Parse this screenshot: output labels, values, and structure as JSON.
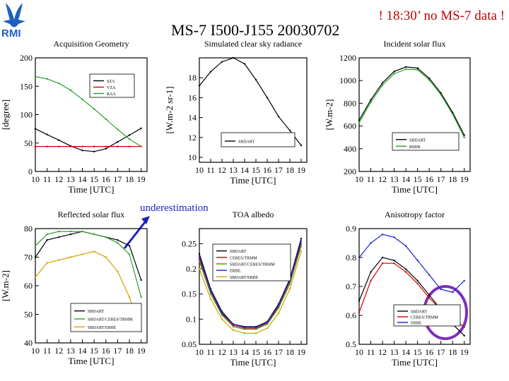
{
  "slide": {
    "title": "MS-7 I500-J155 20030702",
    "warning": "! 18:30’ no MS-7 data !",
    "logo_text": "RMI",
    "annotation": "underestimation",
    "colors": {
      "title": "#000000",
      "warning": "#c00000",
      "annotation": "#1f1fbf",
      "circle": "#7b2fbf",
      "logo": "#1f5fbf"
    }
  },
  "chart_data": [
    {
      "type": "line",
      "title": "Acquisition Geometry",
      "xlabel": "Time [UTC]",
      "ylabel": "[degree]",
      "x": [
        10,
        11,
        12,
        13,
        14,
        15,
        16,
        17,
        18,
        19
      ],
      "xticks": [
        "10",
        "11",
        "12",
        "13",
        "14",
        "15",
        "16",
        "17",
        "18",
        "19"
      ],
      "xlim": [
        10,
        19.5
      ],
      "ylim": [
        0,
        200
      ],
      "yticks": [
        0,
        50,
        100,
        150,
        200
      ],
      "legend": "upper-middle",
      "series": [
        {
          "name": "SZA",
          "color": "#000000",
          "values": [
            75,
            65,
            55,
            45,
            37,
            35,
            40,
            52,
            64,
            76
          ]
        },
        {
          "name": "VZA",
          "color": "#d40000",
          "values": [
            44,
            44,
            44,
            44,
            44,
            44,
            44,
            44,
            44,
            44
          ]
        },
        {
          "name": "RAA",
          "color": "#2ca02c",
          "values": [
            167,
            163,
            155,
            143,
            127,
            110,
            92,
            74,
            57,
            44
          ]
        }
      ]
    },
    {
      "type": "line",
      "title": "Simulated clear sky radiance",
      "xlabel": "Time [UTC]",
      "ylabel": "[W.m-2 sr-1]",
      "x": [
        10,
        11,
        12,
        13,
        14,
        15,
        16,
        17,
        18,
        19
      ],
      "xticks": [
        "10",
        "11",
        "12",
        "13",
        "14",
        "15",
        "16",
        "17",
        "18",
        "19"
      ],
      "xlim": [
        10,
        19.5
      ],
      "ylim": [
        9.5,
        20
      ],
      "yticks": [
        10,
        12,
        14,
        16,
        18
      ],
      "legend": "lower-right",
      "series": [
        {
          "name": "SBDART",
          "color": "#000000",
          "values": [
            17.2,
            18.6,
            19.6,
            20.0,
            19.4,
            17.8,
            16.0,
            14.1,
            12.7,
            11.2
          ]
        }
      ]
    },
    {
      "type": "line",
      "title": "Incident solar flux",
      "xlabel": "Time [UTC]",
      "ylabel": "[W.m-2]",
      "x": [
        10,
        11,
        12,
        13,
        14,
        15,
        16,
        17,
        18,
        19
      ],
      "xticks": [
        "10",
        "11",
        "12",
        "13",
        "14",
        "15",
        "16",
        "17",
        "18",
        "19"
      ],
      "xlim": [
        10,
        19.5
      ],
      "ylim": [
        200,
        1200
      ],
      "yticks": [
        200,
        400,
        600,
        800,
        1000,
        1200
      ],
      "legend": "lower-right",
      "series": [
        {
          "name": "SBDART",
          "color": "#000000",
          "values": [
            650,
            830,
            980,
            1080,
            1120,
            1110,
            1020,
            890,
            720,
            520
          ]
        },
        {
          "name": "RMIB",
          "color": "#2ca02c",
          "values": [
            630,
            810,
            960,
            1060,
            1100,
            1095,
            1005,
            875,
            705,
            500
          ]
        }
      ]
    },
    {
      "type": "line",
      "title": "Reflected solar flux",
      "xlabel": "Time [UTC]",
      "ylabel": "[W.m-2]",
      "x": [
        10,
        11,
        12,
        13,
        14,
        15,
        16,
        17,
        18,
        19
      ],
      "xticks": [
        "10",
        "11",
        "12",
        "13",
        "14",
        "15",
        "16",
        "17",
        "18",
        "19"
      ],
      "xlim": [
        10,
        19.5
      ],
      "ylim": [
        40,
        80
      ],
      "yticks": [
        40,
        50,
        60,
        70,
        80
      ],
      "legend": "lower-left",
      "series": [
        {
          "name": "SBDART",
          "color": "#000000",
          "values": [
            70,
            76,
            77,
            78,
            79,
            78,
            77,
            76,
            74,
            62
          ]
        },
        {
          "name": "SBDART/CERES/TRMM",
          "color": "#2ca02c",
          "values": [
            74,
            78,
            79,
            79,
            79,
            78,
            77,
            75,
            71,
            56
          ]
        },
        {
          "name": "SBDART/ERBE",
          "color": "#d4a000",
          "values": [
            63,
            68,
            69,
            70,
            71,
            72,
            70,
            65,
            56,
            44
          ]
        }
      ]
    },
    {
      "type": "line",
      "title": "TOA albedo",
      "xlabel": "Time [UTC]",
      "ylabel": "",
      "x": [
        10,
        11,
        12,
        13,
        14,
        15,
        16,
        17,
        18,
        19
      ],
      "xticks": [
        "10",
        "11",
        "12",
        "13",
        "14",
        "15",
        "16",
        "17",
        "18",
        "19"
      ],
      "xlim": [
        10,
        19.5
      ],
      "ylim": [
        0.05,
        0.28
      ],
      "yticks": [
        0.05,
        0.1,
        0.15,
        0.2,
        0.25
      ],
      "legend": "top-center",
      "series": [
        {
          "name": "SBDART",
          "color": "#000000",
          "values": [
            0.23,
            0.16,
            0.115,
            0.09,
            0.085,
            0.085,
            0.095,
            0.13,
            0.18,
            0.26
          ]
        },
        {
          "name": "CERES/TRMM",
          "color": "#d40000",
          "values": [
            0.22,
            0.155,
            0.11,
            0.088,
            0.082,
            0.082,
            0.092,
            0.125,
            0.175,
            0.25
          ]
        },
        {
          "name": "SBDART/CERES/TRMM",
          "color": "#2ca02c",
          "values": [
            0.215,
            0.15,
            0.108,
            0.085,
            0.08,
            0.08,
            0.09,
            0.122,
            0.17,
            0.245
          ]
        },
        {
          "name": "ERBE",
          "color": "#1f1fd4",
          "values": [
            0.225,
            0.158,
            0.112,
            0.09,
            0.084,
            0.084,
            0.094,
            0.128,
            0.178,
            0.255
          ]
        },
        {
          "name": "SBDART/ERBE",
          "color": "#d4a000",
          "values": [
            0.2,
            0.14,
            0.1,
            0.078,
            0.072,
            0.072,
            0.082,
            0.112,
            0.16,
            0.235
          ]
        }
      ]
    },
    {
      "type": "line",
      "title": "Anisotropy factor",
      "xlabel": "Time [UTC]",
      "ylabel": "",
      "x": [
        10,
        11,
        12,
        13,
        14,
        15,
        16,
        17,
        18,
        19
      ],
      "xticks": [
        "10",
        "11",
        "12",
        "13",
        "14",
        "15",
        "16",
        "17",
        "18",
        "19"
      ],
      "xlim": [
        10,
        19.5
      ],
      "ylim": [
        0.5,
        0.9
      ],
      "yticks": [
        0.5,
        0.6,
        0.7,
        0.8,
        0.9
      ],
      "legend": "lower-center",
      "series": [
        {
          "name": "SBDART",
          "color": "#000000",
          "values": [
            0.65,
            0.75,
            0.8,
            0.79,
            0.76,
            0.72,
            0.67,
            0.62,
            0.57,
            0.53
          ]
        },
        {
          "name": "CERES/TRMM",
          "color": "#d40000",
          "values": [
            0.61,
            0.72,
            0.78,
            0.78,
            0.75,
            0.71,
            0.66,
            0.62,
            0.59,
            0.56
          ]
        },
        {
          "name": "ERBE",
          "color": "#1f1fd4",
          "values": [
            0.8,
            0.85,
            0.88,
            0.87,
            0.84,
            0.79,
            0.74,
            0.69,
            0.68,
            0.72
          ]
        }
      ]
    }
  ]
}
